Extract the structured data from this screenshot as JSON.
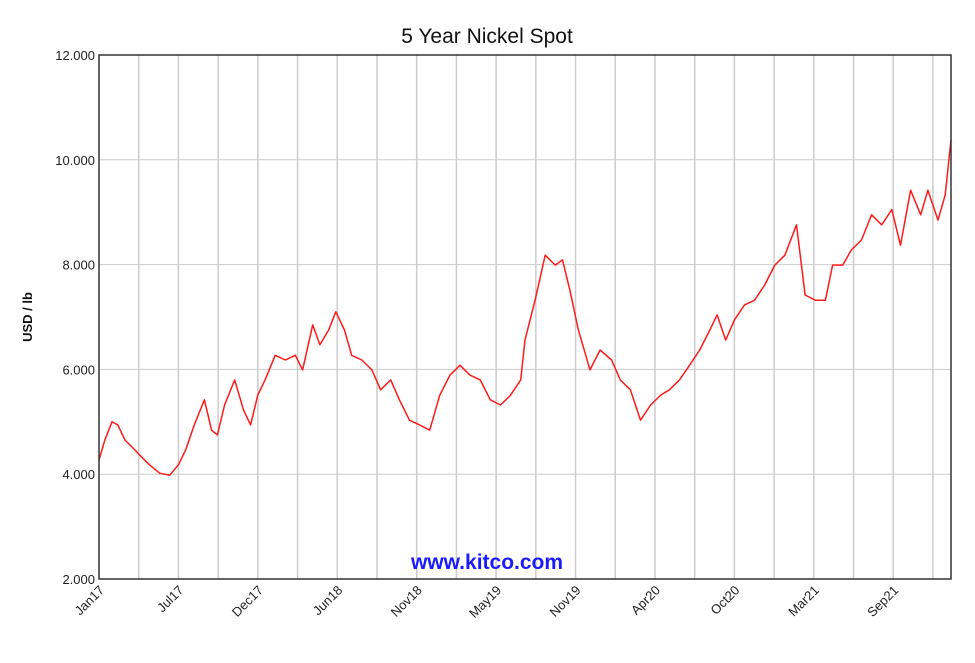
{
  "chart_data": {
    "type": "line",
    "title": "5 Year Nickel Spot",
    "xlabel": "",
    "ylabel": "USD / lb",
    "watermark": "www.kitco.com",
    "ylim": [
      2,
      12
    ],
    "xlim_months_from_jan17": [
      0,
      59
    ],
    "y_ticks": [
      2,
      4,
      6,
      8,
      10,
      12
    ],
    "y_tick_labels": [
      "2.000",
      "4.000",
      "6.000",
      "8.000",
      "10.000",
      "12.000"
    ],
    "x_tick_labels": [
      "Jan17",
      "Jul17",
      "Dec17",
      "Jun18",
      "Nov18",
      "May19",
      "Nov19",
      "Apr20",
      "Oct20",
      "Mar21",
      "Sep21"
    ],
    "x_label_interval_months": 5.5,
    "x_grid_interval_months": 2.75,
    "grid": true,
    "colors": {
      "line": "#ff1a1a",
      "grid": "#cccccc",
      "watermark": "#1a1aff"
    },
    "series": [
      {
        "name": "Nickel Spot",
        "x_months": [
          0,
          0.4,
          0.9,
          1.3,
          1.8,
          2.5,
          2.8,
          3.5,
          4.2,
          4.9,
          5.5,
          6.0,
          6.6,
          7.3,
          7.8,
          8.2,
          8.7,
          9.4,
          10.0,
          10.5,
          11.0,
          11.5,
          12.2,
          12.9,
          13.6,
          14.1,
          14.8,
          15.3,
          15.9,
          16.4,
          17.0,
          17.5,
          18.2,
          18.9,
          19.5,
          20.2,
          20.8,
          21.5,
          22.2,
          22.9,
          23.6,
          24.3,
          25.0,
          25.7,
          26.4,
          27.1,
          27.8,
          28.5,
          29.2,
          29.5,
          30.2,
          30.9,
          31.6,
          32.1,
          32.6,
          33.2,
          34.0,
          34.7,
          35.5,
          36.1,
          36.8,
          37.5,
          38.2,
          38.9,
          39.5,
          40.2,
          40.9,
          41.6,
          42.3,
          42.8,
          43.4,
          44.0,
          44.7,
          45.4,
          46.1,
          46.8,
          47.5,
          48.3,
          48.9,
          49.6,
          50.3,
          50.8,
          51.5,
          52.1,
          52.8,
          53.5,
          54.2,
          54.9,
          55.5,
          56.2,
          56.9,
          57.4,
          58.1,
          58.6,
          59.0
        ],
        "values": [
          4.27,
          4.65,
          5.0,
          4.94,
          4.65,
          4.46,
          4.37,
          4.18,
          4.02,
          3.98,
          4.18,
          4.46,
          4.94,
          5.42,
          4.84,
          4.75,
          5.32,
          5.8,
          5.23,
          4.94,
          5.51,
          5.8,
          6.27,
          6.18,
          6.27,
          5.99,
          6.85,
          6.47,
          6.75,
          7.1,
          6.75,
          6.27,
          6.18,
          5.99,
          5.61,
          5.8,
          5.42,
          5.03,
          4.94,
          4.84,
          5.51,
          5.89,
          6.08,
          5.89,
          5.8,
          5.42,
          5.32,
          5.51,
          5.8,
          6.56,
          7.32,
          8.18,
          7.99,
          8.09,
          7.52,
          6.75,
          5.99,
          6.37,
          6.18,
          5.8,
          5.61,
          5.03,
          5.32,
          5.51,
          5.61,
          5.8,
          6.08,
          6.37,
          6.75,
          7.04,
          6.56,
          6.94,
          7.23,
          7.32,
          7.61,
          7.99,
          8.18,
          8.76,
          7.42,
          7.32,
          7.32,
          7.99,
          7.99,
          8.28,
          8.47,
          8.95,
          8.76,
          9.05,
          8.37,
          9.42,
          8.95,
          9.42,
          8.85,
          9.33,
          10.38
        ]
      }
    ]
  }
}
